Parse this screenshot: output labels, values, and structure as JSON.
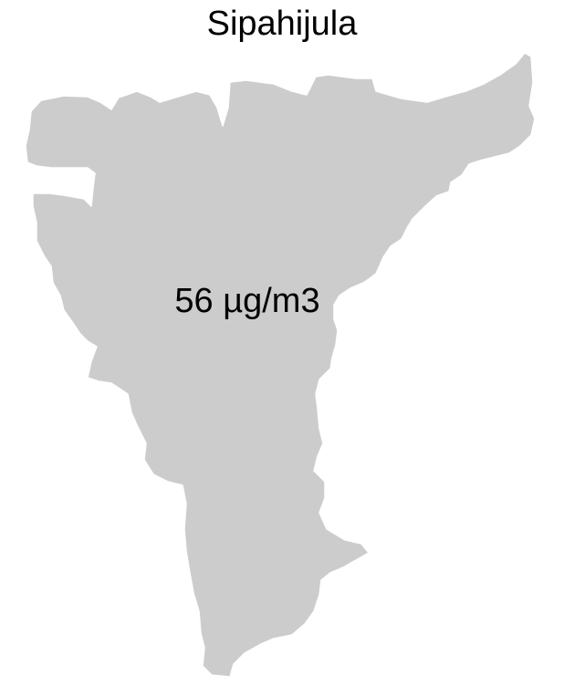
{
  "map": {
    "title": "Sipahijula",
    "region_fill": "#cccccc",
    "region_stroke": "#ffffff",
    "value_label": "56 µg/m3"
  }
}
